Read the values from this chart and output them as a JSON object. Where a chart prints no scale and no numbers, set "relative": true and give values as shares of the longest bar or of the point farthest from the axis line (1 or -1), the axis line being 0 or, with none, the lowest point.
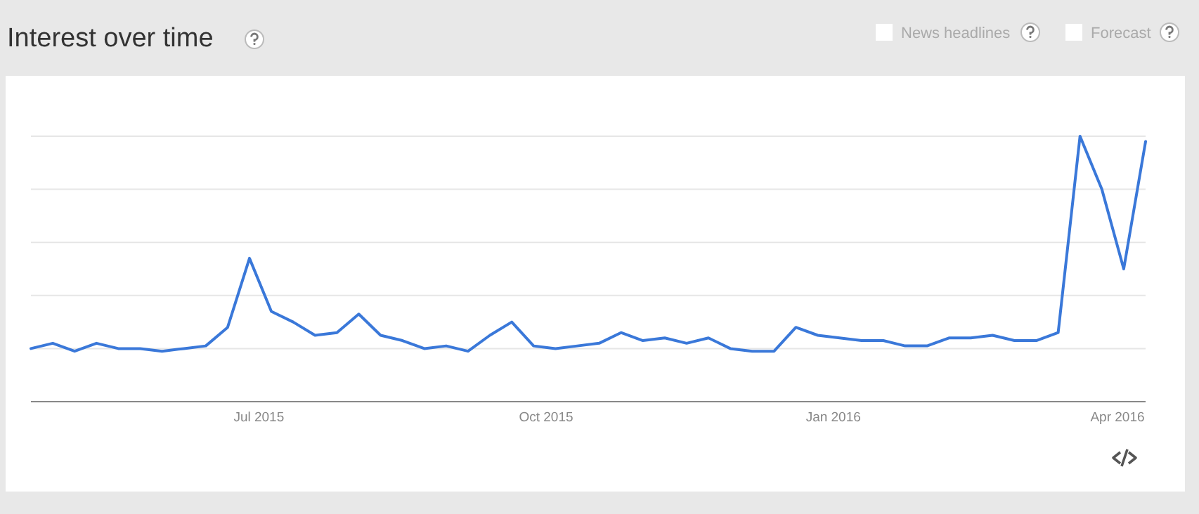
{
  "chart_data": {
    "type": "line",
    "title": "Interest over time",
    "relative": true,
    "grid": "y",
    "line_style": "solid",
    "marker": "none",
    "x": [
      "2015-04-19",
      "2015-04-26",
      "2015-05-03",
      "2015-05-10",
      "2015-05-17",
      "2015-05-24",
      "2015-05-31",
      "2015-06-07",
      "2015-06-14",
      "2015-06-21",
      "2015-06-28",
      "2015-07-05",
      "2015-07-12",
      "2015-07-19",
      "2015-07-26",
      "2015-08-02",
      "2015-08-09",
      "2015-08-16",
      "2015-08-23",
      "2015-08-30",
      "2015-09-06",
      "2015-09-13",
      "2015-09-20",
      "2015-09-27",
      "2015-10-04",
      "2015-10-11",
      "2015-10-18",
      "2015-10-25",
      "2015-11-01",
      "2015-11-08",
      "2015-11-15",
      "2015-11-22",
      "2015-11-29",
      "2015-12-06",
      "2015-12-13",
      "2015-12-20",
      "2015-12-27",
      "2016-01-03",
      "2016-01-10",
      "2016-01-17",
      "2016-01-24",
      "2016-01-31",
      "2016-02-07",
      "2016-02-14",
      "2016-02-21",
      "2016-02-28",
      "2016-03-06",
      "2016-03-13",
      "2016-03-20",
      "2016-03-27",
      "2016-04-03",
      "2016-04-10"
    ],
    "xlim": [
      "2015-04-19",
      "2016-04-10"
    ],
    "xticks": [
      {
        "value": "2015-07-01",
        "label": "Jul 2015"
      },
      {
        "value": "2015-10-01",
        "label": "Oct 2015"
      },
      {
        "value": "2016-01-01",
        "label": "Jan 2016"
      },
      {
        "value": "2016-04-01",
        "label": "Apr 2016"
      }
    ],
    "series": [
      {
        "color": "#3a78d9",
        "values": [
          0.2,
          0.22,
          0.19,
          0.22,
          0.2,
          0.2,
          0.19,
          0.2,
          0.21,
          0.28,
          0.54,
          0.34,
          0.3,
          0.25,
          0.26,
          0.33,
          0.25,
          0.23,
          0.2,
          0.21,
          0.19,
          0.25,
          0.3,
          0.21,
          0.2,
          0.21,
          0.22,
          0.26,
          0.23,
          0.24,
          0.22,
          0.24,
          0.2,
          0.19,
          0.19,
          0.28,
          0.25,
          0.24,
          0.23,
          0.23,
          0.21,
          0.21,
          0.24,
          0.24,
          0.25,
          0.23,
          0.23,
          0.26,
          1,
          0.8,
          0.5,
          0.98
        ]
      }
    ],
    "annotations": [
      "News headlines",
      "Forecast"
    ]
  }
}
